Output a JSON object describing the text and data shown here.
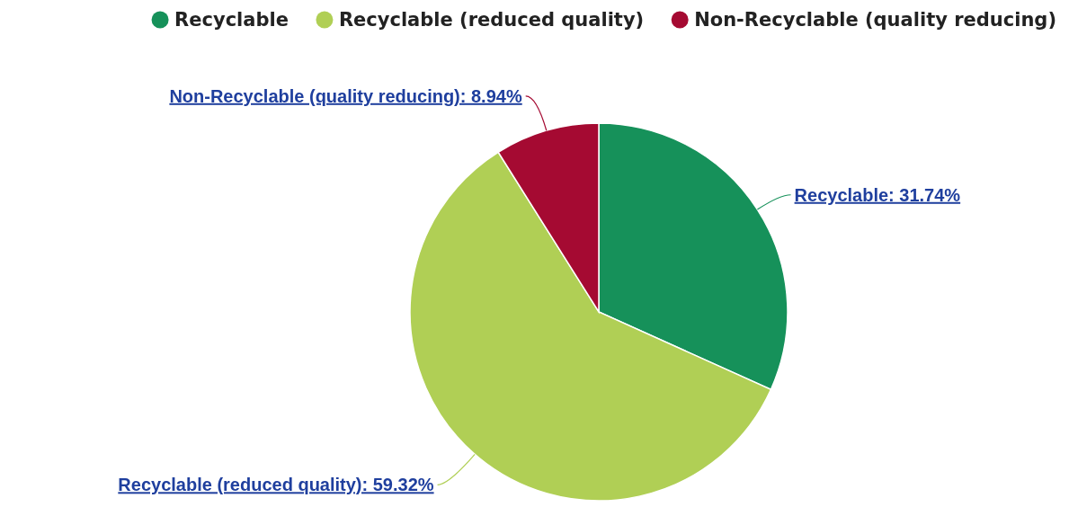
{
  "chart_data": {
    "type": "pie",
    "categories": [
      "Recyclable",
      "Recyclable (reduced quality)",
      "Non-Recyclable (quality reducing)"
    ],
    "values": [
      31.74,
      59.32,
      8.94
    ],
    "colors": [
      "#16915a",
      "#b0cf55",
      "#a50a32"
    ],
    "value_labels": [
      "Recyclable: 31.74%",
      "Recyclable (reduced quality): 59.32%",
      "Non-Recyclable (quality reducing): 8.94%"
    ],
    "legend": "top right"
  }
}
